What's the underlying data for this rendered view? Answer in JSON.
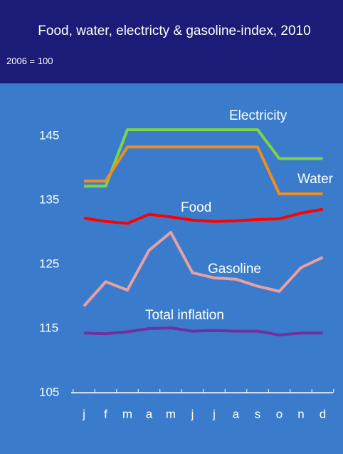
{
  "chart_data": {
    "type": "line",
    "title": "Food, water, electricty & gasoline-index, 2010",
    "subtitle": "2006 = 100",
    "categories": [
      "j",
      "f",
      "m",
      "a",
      "m",
      "j",
      "j",
      "a",
      "s",
      "o",
      "n",
      "d"
    ],
    "series": [
      {
        "name": "Electricity",
        "color": "#7ed348",
        "values": [
          137.2,
          137.2,
          146,
          146,
          146,
          146,
          146,
          146,
          146,
          141.5,
          141.5,
          141.5
        ]
      },
      {
        "name": "Water",
        "color": "#f28c1d",
        "values": [
          138,
          138,
          143.3,
          143.3,
          143.3,
          143.3,
          143.3,
          143.3,
          143.3,
          136,
          136,
          136
        ]
      },
      {
        "name": "Food",
        "color": "#ff0000",
        "values": [
          132.2,
          131.7,
          131.4,
          132.8,
          132.4,
          131.9,
          131.7,
          131.8,
          132,
          132.1,
          133,
          133.6
        ]
      },
      {
        "name": "Gasoline",
        "color": "#e8a0a0",
        "values": [
          118.5,
          122.3,
          121,
          127.2,
          130,
          123.7,
          122.9,
          122.7,
          121.6,
          120.8,
          124.5,
          126.1
        ]
      },
      {
        "name": "Total inflation",
        "color": "#7030a0",
        "values": [
          114.3,
          114.2,
          114.5,
          115,
          115.1,
          114.6,
          114.7,
          114.6,
          114.6,
          114,
          114.3,
          114.3
        ]
      }
    ],
    "ylim": [
      105,
      150
    ],
    "yticks": [
      105,
      115,
      125,
      135,
      145
    ],
    "grid": false
  }
}
